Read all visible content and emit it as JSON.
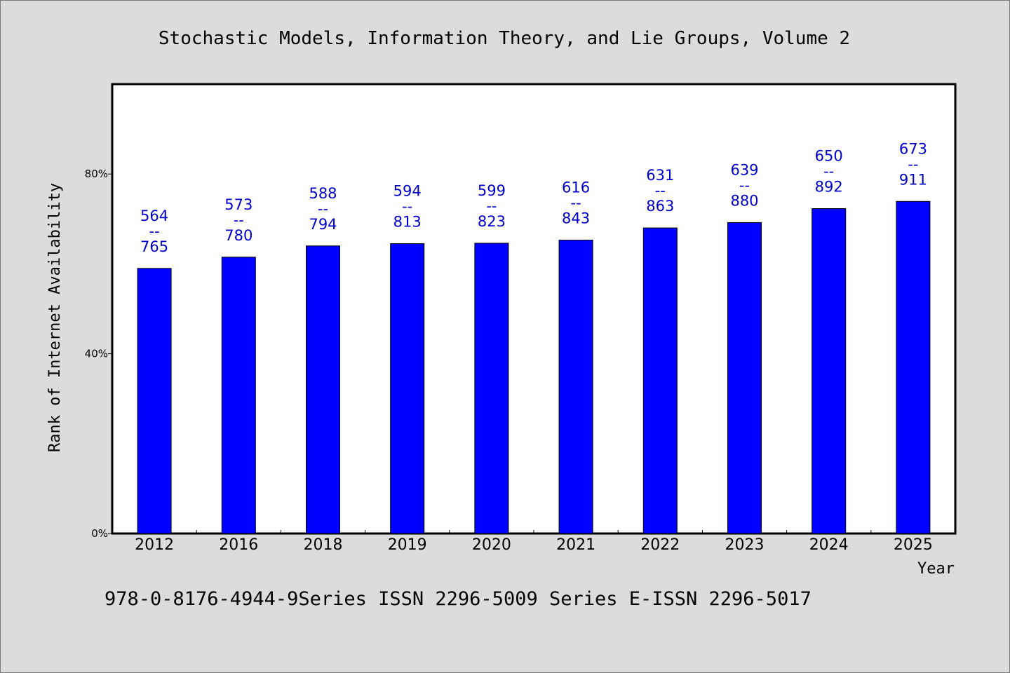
{
  "colors": {
    "bar": "#0000ff",
    "label": "#0000cc",
    "background": "#dcdcdc",
    "plot_bg": "#ffffff"
  },
  "footnote": "978-0-8176-4944-9Series ISSN 2296-5009 Series E-ISSN 2296-5017",
  "chart_data": {
    "type": "bar",
    "title": "Stochastic Models, Information Theory, and Lie Groups, Volume 2",
    "xlabel": "Year",
    "ylabel": "Rank of Internet Availability",
    "categories": [
      "2012",
      "2016",
      "2018",
      "2019",
      "2020",
      "2021",
      "2022",
      "2023",
      "2024",
      "2025"
    ],
    "series": [
      {
        "values": [
          59,
          61.5,
          64,
          64.5,
          64.6,
          65.3,
          68,
          69.2,
          72.3,
          73.9
        ]
      }
    ],
    "data_labels": [
      [
        "564",
        "--",
        "765"
      ],
      [
        "573",
        "--",
        "780"
      ],
      [
        "588",
        "--",
        "794"
      ],
      [
        "594",
        "--",
        "813"
      ],
      [
        "599",
        "--",
        "823"
      ],
      [
        "616",
        "--",
        "843"
      ],
      [
        "631",
        "--",
        "863"
      ],
      [
        "639",
        "--",
        "880"
      ],
      [
        "650",
        "--",
        "892"
      ],
      [
        "673",
        "--",
        "911"
      ]
    ],
    "yticks": [
      0,
      40,
      80
    ],
    "ytick_labels": [
      "0%",
      "40%",
      "80%"
    ],
    "ylim": [
      0,
      100
    ],
    "grid": false,
    "legend": "none"
  }
}
